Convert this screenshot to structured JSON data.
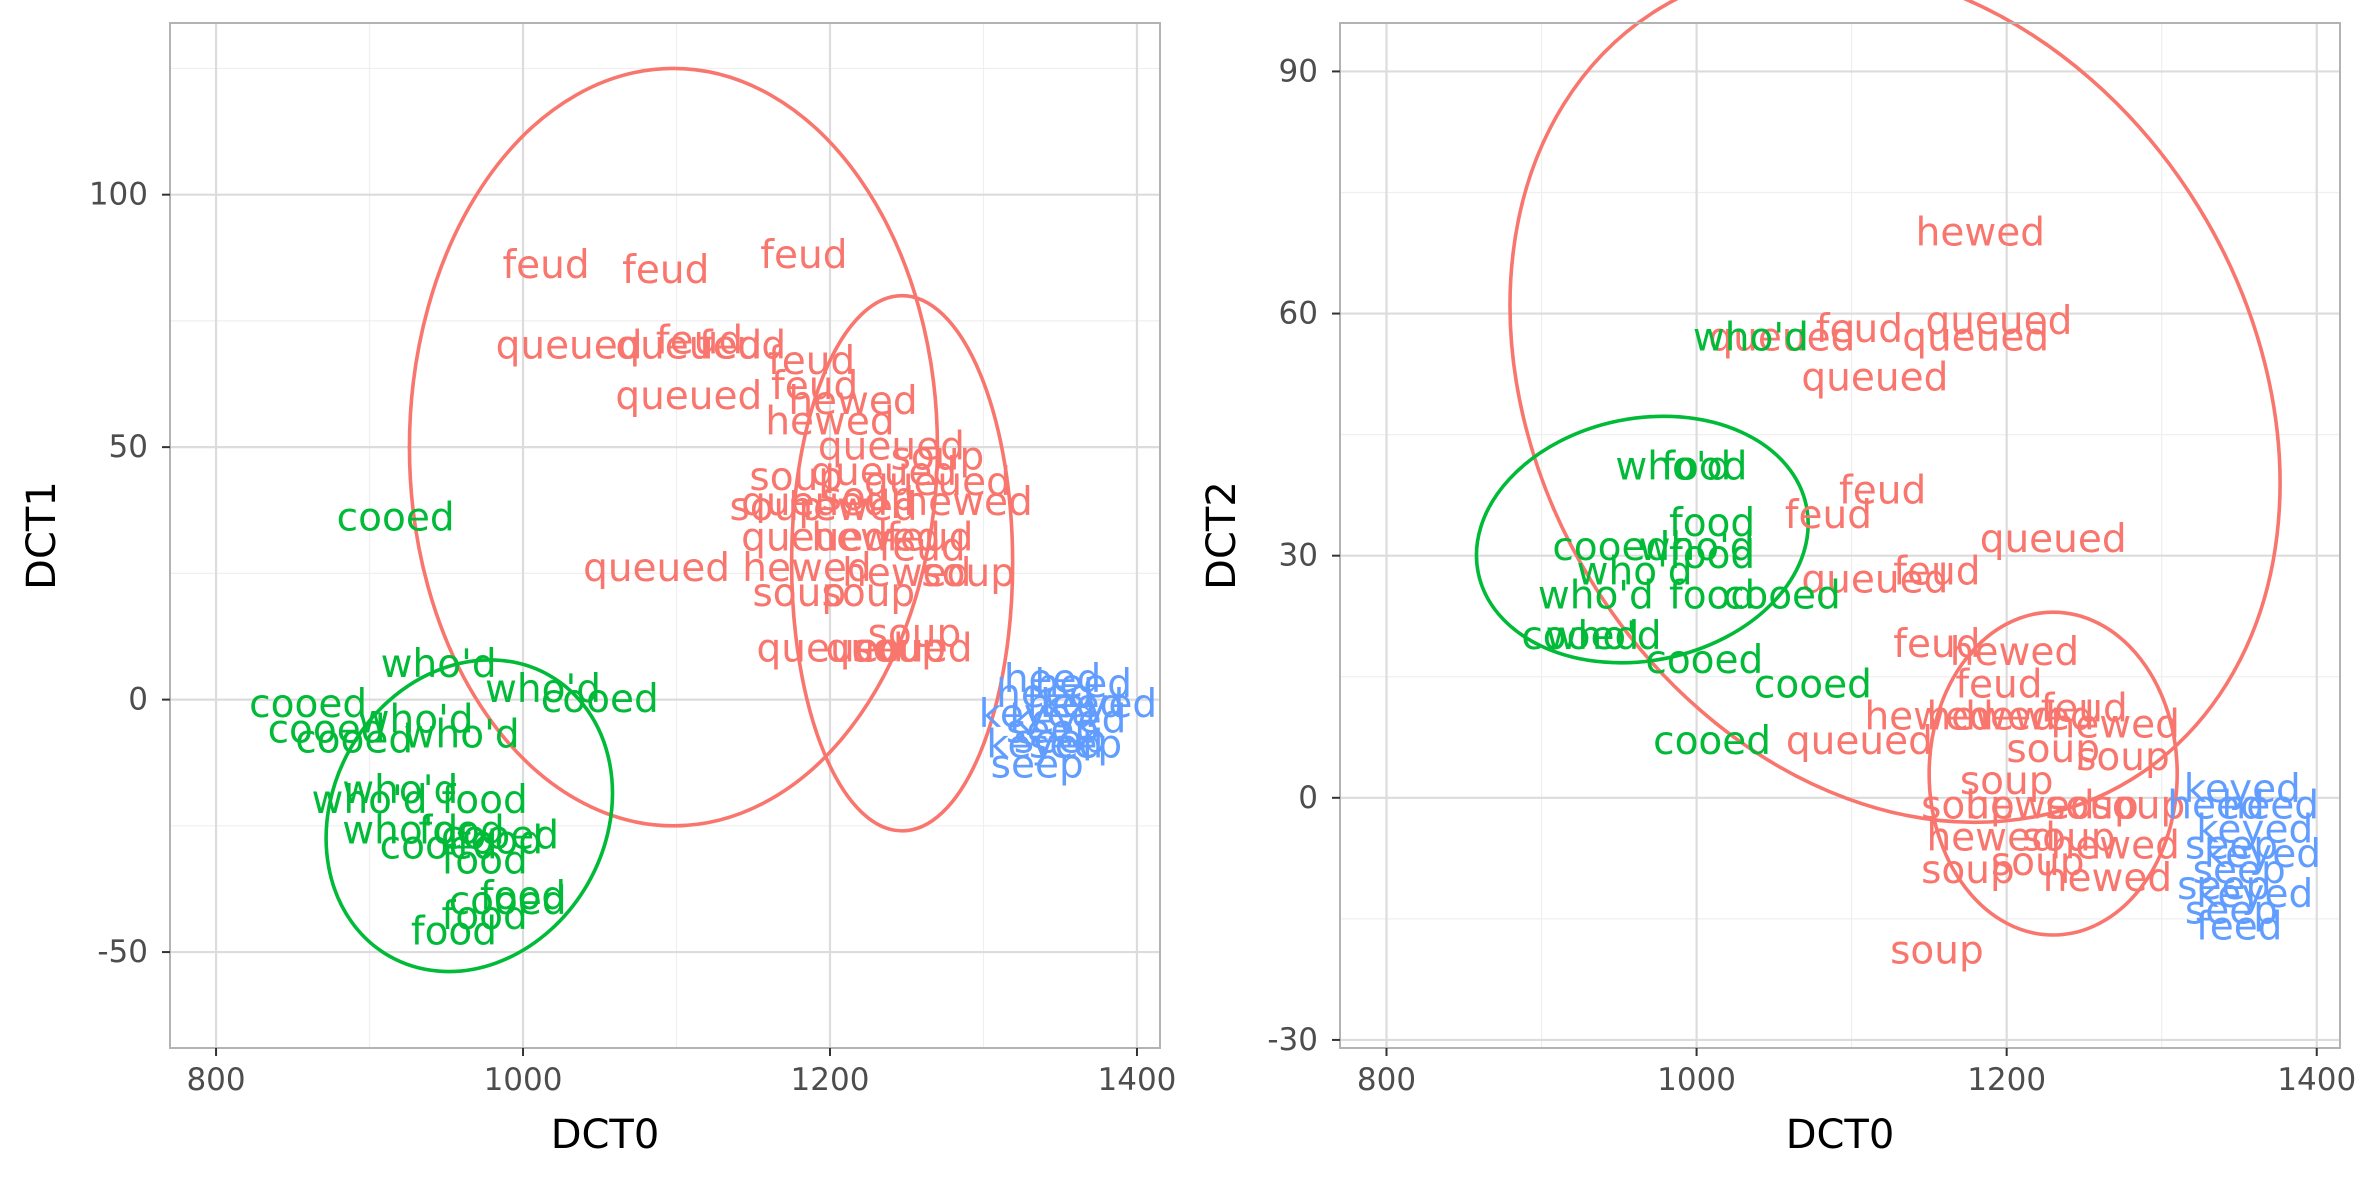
{
  "chart_data": [
    {
      "type": "scatter",
      "xlabel": "DCT0",
      "ylabel": "DCT1",
      "xlim": [
        770,
        1415
      ],
      "ylim": [
        -69,
        134
      ],
      "x_ticks": [
        800,
        1000,
        1200,
        1400
      ],
      "y_ticks": [
        -50,
        0,
        50,
        100
      ],
      "y_tick_labels": [
        "-50",
        "0",
        "50",
        "100"
      ],
      "grid": true,
      "legend": "none",
      "colors": {
        "group_a": "#f8766d",
        "group_b": "#00ba38",
        "group_c": "#619cff"
      },
      "ellipses": [
        {
          "color": "#f8766d",
          "cx": 1098,
          "cy": 50,
          "rx": 172,
          "ry": 75
        },
        {
          "color": "#f8766d",
          "cx": 1247,
          "cy": 27,
          "rx": 72,
          "ry": 53
        },
        {
          "color": "#00ba38",
          "cx": 965,
          "cy": -23,
          "rx": 89,
          "ry": 32,
          "rotate": 0.52
        }
      ],
      "points": [
        {
          "x": 1015,
          "y": 86,
          "label": "feud",
          "color": "#f8766d"
        },
        {
          "x": 1093,
          "y": 85,
          "label": "feud",
          "color": "#f8766d"
        },
        {
          "x": 1183,
          "y": 88,
          "label": "feud",
          "color": "#f8766d"
        },
        {
          "x": 1030,
          "y": 70,
          "label": "queued",
          "color": "#f8766d"
        },
        {
          "x": 1115,
          "y": 71,
          "label": "feud",
          "color": "#f8766d"
        },
        {
          "x": 1108,
          "y": 70,
          "label": "queued",
          "color": "#f8766d"
        },
        {
          "x": 1143,
          "y": 70,
          "label": "feud",
          "color": "#f8766d"
        },
        {
          "x": 1188,
          "y": 67,
          "label": "feud",
          "color": "#f8766d"
        },
        {
          "x": 1108,
          "y": 60,
          "label": "queued",
          "color": "#f8766d"
        },
        {
          "x": 1190,
          "y": 62,
          "label": "feud",
          "color": "#f8766d"
        },
        {
          "x": 1215,
          "y": 59,
          "label": "hewed",
          "color": "#f8766d"
        },
        {
          "x": 1200,
          "y": 55,
          "label": "hewed",
          "color": "#f8766d"
        },
        {
          "x": 1240,
          "y": 50,
          "label": "queued",
          "color": "#f8766d"
        },
        {
          "x": 1270,
          "y": 48,
          "label": "soup",
          "color": "#f8766d"
        },
        {
          "x": 1178,
          "y": 44,
          "label": "soup",
          "color": "#f8766d"
        },
        {
          "x": 1235,
          "y": 45,
          "label": "queued",
          "color": "#f8766d"
        },
        {
          "x": 1270,
          "y": 43,
          "label": "queued",
          "color": "#f8766d"
        },
        {
          "x": 1190,
          "y": 39,
          "label": "queued",
          "color": "#f8766d"
        },
        {
          "x": 1225,
          "y": 40,
          "label": "soup",
          "color": "#f8766d"
        },
        {
          "x": 1290,
          "y": 39,
          "label": "hewed",
          "color": "#f8766d"
        },
        {
          "x": 1165,
          "y": 38,
          "label": "soup",
          "color": "#f8766d"
        },
        {
          "x": 1215,
          "y": 38,
          "label": "hewed",
          "color": "#f8766d"
        },
        {
          "x": 1190,
          "y": 32,
          "label": "queued",
          "color": "#f8766d"
        },
        {
          "x": 1230,
          "y": 32,
          "label": "hewed",
          "color": "#f8766d"
        },
        {
          "x": 1265,
          "y": 32,
          "label": "feud",
          "color": "#f8766d"
        },
        {
          "x": 1260,
          "y": 30,
          "label": "feud",
          "color": "#f8766d"
        },
        {
          "x": 1087,
          "y": 26,
          "label": "queued",
          "color": "#f8766d"
        },
        {
          "x": 1185,
          "y": 26,
          "label": "hewed",
          "color": "#f8766d"
        },
        {
          "x": 1250,
          "y": 25,
          "label": "hewed",
          "color": "#f8766d"
        },
        {
          "x": 1290,
          "y": 25,
          "label": "soup",
          "color": "#f8766d"
        },
        {
          "x": 1180,
          "y": 21,
          "label": "soup",
          "color": "#f8766d"
        },
        {
          "x": 1225,
          "y": 21,
          "label": "soup",
          "color": "#f8766d"
        },
        {
          "x": 1255,
          "y": 13,
          "label": "soup",
          "color": "#f8766d"
        },
        {
          "x": 1245,
          "y": 10,
          "label": "soup",
          "color": "#f8766d"
        },
        {
          "x": 1200,
          "y": 10,
          "label": "queued",
          "color": "#f8766d"
        },
        {
          "x": 1245,
          "y": 10,
          "label": "queued",
          "color": "#f8766d"
        },
        {
          "x": 917,
          "y": 36,
          "label": "cooed",
          "color": "#00ba38"
        },
        {
          "x": 945,
          "y": 7,
          "label": "who'd",
          "color": "#00ba38"
        },
        {
          "x": 1050,
          "y": 0,
          "label": "cooed",
          "color": "#00ba38"
        },
        {
          "x": 1013,
          "y": 2,
          "label": "who'd",
          "color": "#00ba38"
        },
        {
          "x": 860,
          "y": -1,
          "label": "cooed",
          "color": "#00ba38"
        },
        {
          "x": 930,
          "y": -4,
          "label": "who'd",
          "color": "#00ba38"
        },
        {
          "x": 872,
          "y": -6,
          "label": "cooed",
          "color": "#00ba38"
        },
        {
          "x": 960,
          "y": -7,
          "label": "who'd",
          "color": "#00ba38"
        },
        {
          "x": 890,
          "y": -8,
          "label": "cooed",
          "color": "#00ba38"
        },
        {
          "x": 900,
          "y": -20,
          "label": "who'd",
          "color": "#00ba38"
        },
        {
          "x": 975,
          "y": -20,
          "label": "food",
          "color": "#00ba38"
        },
        {
          "x": 920,
          "y": -18,
          "label": "who'd",
          "color": "#00ba38"
        },
        {
          "x": 920,
          "y": -26,
          "label": "who'd",
          "color": "#00ba38"
        },
        {
          "x": 960,
          "y": -26,
          "label": "food",
          "color": "#00ba38"
        },
        {
          "x": 985,
          "y": -27,
          "label": "cooed",
          "color": "#00ba38"
        },
        {
          "x": 945,
          "y": -29,
          "label": "cooed",
          "color": "#00ba38"
        },
        {
          "x": 985,
          "y": -28,
          "label": "food",
          "color": "#00ba38"
        },
        {
          "x": 975,
          "y": -32,
          "label": "food",
          "color": "#00ba38"
        },
        {
          "x": 1000,
          "y": -39,
          "label": "food",
          "color": "#00ba38"
        },
        {
          "x": 990,
          "y": -40,
          "label": "cooed",
          "color": "#00ba38"
        },
        {
          "x": 975,
          "y": -43,
          "label": "food",
          "color": "#00ba38"
        },
        {
          "x": 955,
          "y": -46,
          "label": "food",
          "color": "#00ba38"
        },
        {
          "x": 1345,
          "y": 4,
          "label": "heed",
          "color": "#619cff"
        },
        {
          "x": 1365,
          "y": 3,
          "label": "heed",
          "color": "#619cff"
        },
        {
          "x": 1340,
          "y": 1,
          "label": "heed",
          "color": "#619cff"
        },
        {
          "x": 1360,
          "y": -1,
          "label": "heed",
          "color": "#619cff"
        },
        {
          "x": 1375,
          "y": -1,
          "label": "keyed",
          "color": "#619cff"
        },
        {
          "x": 1335,
          "y": -3,
          "label": "keyed",
          "color": "#619cff"
        },
        {
          "x": 1355,
          "y": -4,
          "label": "keyed",
          "color": "#619cff"
        },
        {
          "x": 1345,
          "y": -6,
          "label": "seep",
          "color": "#619cff"
        },
        {
          "x": 1350,
          "y": -8,
          "label": "seep",
          "color": "#619cff"
        },
        {
          "x": 1340,
          "y": -9,
          "label": "keyed",
          "color": "#619cff"
        },
        {
          "x": 1360,
          "y": -9,
          "label": "seep",
          "color": "#619cff"
        },
        {
          "x": 1335,
          "y": -13,
          "label": "seep",
          "color": "#619cff"
        }
      ]
    },
    {
      "type": "scatter",
      "xlabel": "DCT0",
      "ylabel": "DCT2",
      "xlim": [
        770,
        1415
      ],
      "ylim": [
        -31,
        96
      ],
      "x_ticks": [
        800,
        1000,
        1200,
        1400
      ],
      "y_ticks": [
        -30,
        0,
        30,
        60,
        90
      ],
      "y_tick_labels": [
        "-30",
        "0",
        "30",
        "60",
        "90"
      ],
      "grid": true,
      "legend": "none",
      "colors": {
        "group_a": "#f8766d",
        "group_b": "#00ba38",
        "group_c": "#619cff"
      },
      "ellipses": [
        {
          "color": "#f8766d",
          "cx": 1128,
          "cy": 50,
          "rx": 230,
          "ry": 56,
          "rotate": -0.55
        },
        {
          "color": "#f8766d",
          "cx": 1230,
          "cy": 3,
          "rx": 80,
          "ry": 20
        },
        {
          "color": "#00ba38",
          "cx": 965,
          "cy": 32,
          "rx": 108,
          "ry": 15,
          "rotate": -0.2
        }
      ],
      "points": [
        {
          "x": 1183,
          "y": 70,
          "label": "hewed",
          "color": "#f8766d"
        },
        {
          "x": 1195,
          "y": 59,
          "label": "queued",
          "color": "#f8766d"
        },
        {
          "x": 1180,
          "y": 57,
          "label": "queued",
          "color": "#f8766d"
        },
        {
          "x": 1115,
          "y": 52,
          "label": "queued",
          "color": "#f8766d"
        },
        {
          "x": 1055,
          "y": 57,
          "label": "queued",
          "color": "#f8766d"
        },
        {
          "x": 1105,
          "y": 58,
          "label": "feud",
          "color": "#f8766d"
        },
        {
          "x": 1120,
          "y": 38,
          "label": "feud",
          "color": "#f8766d"
        },
        {
          "x": 1230,
          "y": 32,
          "label": "queued",
          "color": "#f8766d"
        },
        {
          "x": 1115,
          "y": 27,
          "label": "queued",
          "color": "#f8766d"
        },
        {
          "x": 1155,
          "y": 28,
          "label": "feud",
          "color": "#f8766d"
        },
        {
          "x": 1085,
          "y": 35,
          "label": "feud",
          "color": "#f8766d"
        },
        {
          "x": 1155,
          "y": 19,
          "label": "feud",
          "color": "#f8766d"
        },
        {
          "x": 1205,
          "y": 18,
          "label": "hewed",
          "color": "#f8766d"
        },
        {
          "x": 1195,
          "y": 14,
          "label": "feud",
          "color": "#f8766d"
        },
        {
          "x": 1105,
          "y": 7,
          "label": "queued",
          "color": "#f8766d"
        },
        {
          "x": 1150,
          "y": 10,
          "label": "hewed",
          "color": "#f8766d"
        },
        {
          "x": 1190,
          "y": 10,
          "label": "hewed",
          "color": "#f8766d"
        },
        {
          "x": 1215,
          "y": 10,
          "label": "hewed",
          "color": "#f8766d"
        },
        {
          "x": 1250,
          "y": 11,
          "label": "feud",
          "color": "#f8766d"
        },
        {
          "x": 1270,
          "y": 9,
          "label": "hewed",
          "color": "#f8766d"
        },
        {
          "x": 1230,
          "y": 6,
          "label": "soup",
          "color": "#f8766d"
        },
        {
          "x": 1275,
          "y": 5,
          "label": "soup",
          "color": "#f8766d"
        },
        {
          "x": 1200,
          "y": 2,
          "label": "soup",
          "color": "#f8766d"
        },
        {
          "x": 1175,
          "y": -1,
          "label": "soup",
          "color": "#f8766d"
        },
        {
          "x": 1215,
          "y": -1,
          "label": "hewed",
          "color": "#f8766d"
        },
        {
          "x": 1255,
          "y": -1,
          "label": "soup",
          "color": "#f8766d"
        },
        {
          "x": 1285,
          "y": -1,
          "label": "soup",
          "color": "#f8766d"
        },
        {
          "x": 1190,
          "y": -5,
          "label": "hewed",
          "color": "#f8766d"
        },
        {
          "x": 1240,
          "y": -5,
          "label": "soup",
          "color": "#f8766d"
        },
        {
          "x": 1270,
          "y": -6,
          "label": "hewed",
          "color": "#f8766d"
        },
        {
          "x": 1175,
          "y": -9,
          "label": "soup",
          "color": "#f8766d"
        },
        {
          "x": 1220,
          "y": -8,
          "label": "soup",
          "color": "#f8766d"
        },
        {
          "x": 1265,
          "y": -10,
          "label": "hewed",
          "color": "#f8766d"
        },
        {
          "x": 1155,
          "y": -19,
          "label": "soup",
          "color": "#f8766d"
        },
        {
          "x": 1035,
          "y": 57,
          "label": "who'd",
          "color": "#00ba38"
        },
        {
          "x": 985,
          "y": 41,
          "label": "who'd",
          "color": "#00ba38"
        },
        {
          "x": 1005,
          "y": 41,
          "label": "food",
          "color": "#00ba38"
        },
        {
          "x": 1010,
          "y": 34,
          "label": "food",
          "color": "#00ba38"
        },
        {
          "x": 945,
          "y": 31,
          "label": "cooed",
          "color": "#00ba38"
        },
        {
          "x": 1000,
          "y": 31,
          "label": "who'd",
          "color": "#00ba38"
        },
        {
          "x": 960,
          "y": 28,
          "label": "who'd",
          "color": "#00ba38"
        },
        {
          "x": 1010,
          "y": 30,
          "label": "food",
          "color": "#00ba38"
        },
        {
          "x": 935,
          "y": 25,
          "label": "who'd",
          "color": "#00ba38"
        },
        {
          "x": 1010,
          "y": 25,
          "label": "food",
          "color": "#00ba38"
        },
        {
          "x": 1055,
          "y": 25,
          "label": "cooed",
          "color": "#00ba38"
        },
        {
          "x": 925,
          "y": 20,
          "label": "cooed",
          "color": "#00ba38"
        },
        {
          "x": 940,
          "y": 20,
          "label": "who'd",
          "color": "#00ba38"
        },
        {
          "x": 1005,
          "y": 17,
          "label": "cooed",
          "color": "#00ba38"
        },
        {
          "x": 1075,
          "y": 14,
          "label": "cooed",
          "color": "#00ba38"
        },
        {
          "x": 1010,
          "y": 7,
          "label": "cooed",
          "color": "#00ba38"
        },
        {
          "x": 1352,
          "y": 1,
          "label": "keyed",
          "color": "#619cff"
        },
        {
          "x": 1370,
          "y": -1,
          "label": "heed",
          "color": "#619cff"
        },
        {
          "x": 1335,
          "y": -1,
          "label": "heed",
          "color": "#619cff"
        },
        {
          "x": 1360,
          "y": -4,
          "label": "keyed",
          "color": "#619cff"
        },
        {
          "x": 1345,
          "y": -6,
          "label": "seep",
          "color": "#619cff"
        },
        {
          "x": 1365,
          "y": -7,
          "label": "keyed",
          "color": "#619cff"
        },
        {
          "x": 1350,
          "y": -9,
          "label": "seep",
          "color": "#619cff"
        },
        {
          "x": 1340,
          "y": -11,
          "label": "seep",
          "color": "#619cff"
        },
        {
          "x": 1360,
          "y": -12,
          "label": "keyed",
          "color": "#619cff"
        },
        {
          "x": 1345,
          "y": -14,
          "label": "seep",
          "color": "#619cff"
        },
        {
          "x": 1350,
          "y": -16,
          "label": "feed",
          "color": "#619cff"
        }
      ]
    }
  ]
}
